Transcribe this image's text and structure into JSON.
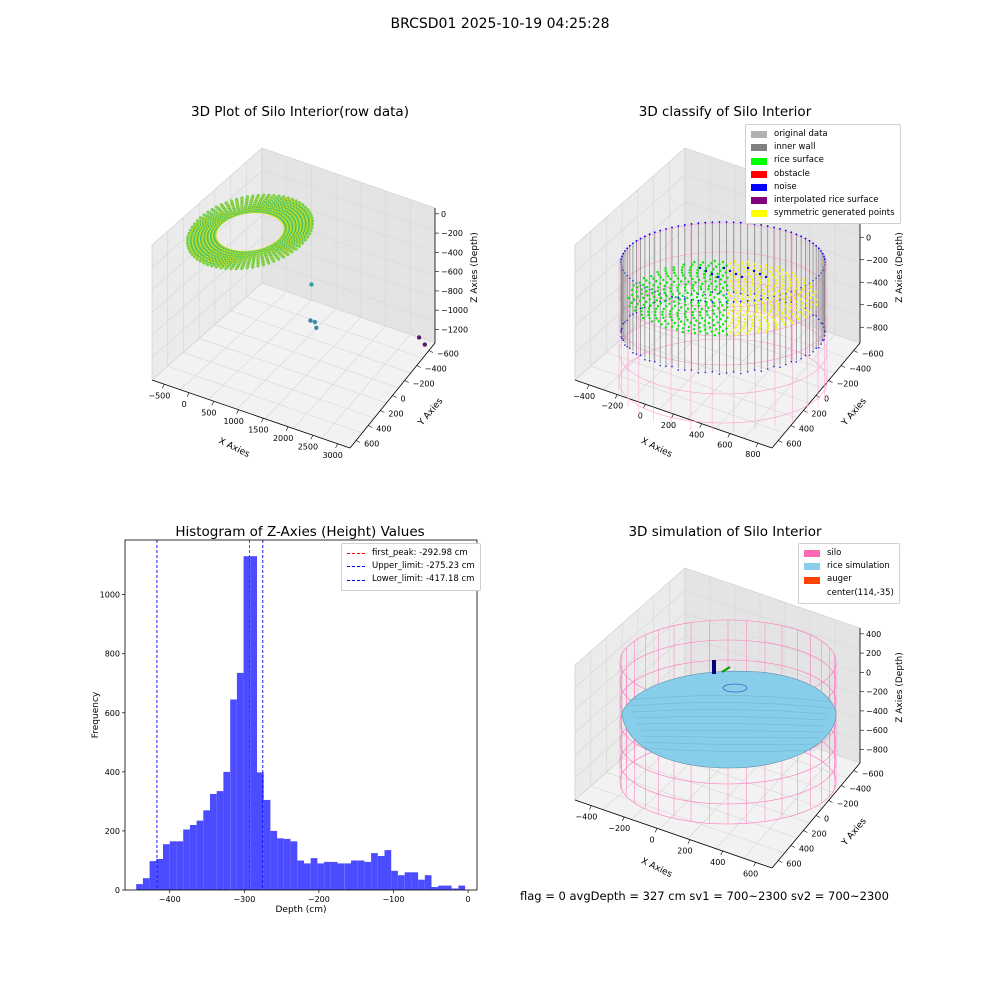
{
  "suptitle": "BRCSD01 2025-10-19 04:25:28",
  "status_line": "flag = 0     avgDepth = 327 cm  sv1 = 700~2300  sv2 = 700~2300",
  "colors": {
    "silo": "#ff69b4",
    "rice_simulation": "#87ceeb",
    "auger": "#ff4500",
    "original_data": "#b0b0b0",
    "inner_wall": "#808080",
    "rice_surface": "#00ff00",
    "obstacle": "#ff0000",
    "noise": "#0000ff",
    "interpolated": "#800080",
    "symmetric": "#ffff00",
    "histogram": "#4b4bff",
    "peak_line": "#ff0000",
    "limit_line": "#0000ff"
  },
  "chart_data": [
    {
      "type": "scatter",
      "title": "3D Plot of Silo Interior(row data)",
      "xlabel": "X Axies",
      "ylabel": "Y Axies",
      "zlabel": "Z Axies (Depth)",
      "x_ticks": [
        "−500",
        "0",
        "500",
        "1000",
        "1500",
        "2000",
        "2500",
        "3000"
      ],
      "y_ticks": [
        "−600",
        "−400",
        "−200",
        "0",
        "200",
        "400",
        "600"
      ],
      "z_ticks": [
        "0",
        "−200",
        "−400",
        "−600",
        "−800",
        "−1000",
        "−1200"
      ],
      "xlim": [
        -650,
        3100
      ],
      "ylim": [
        -650,
        650
      ],
      "zlim": [
        -1300,
        0
      ],
      "outliers": [
        {
          "x": 1000,
          "y": -300,
          "z": -800
        },
        {
          "x": 1150,
          "y": -250,
          "z": -1100
        },
        {
          "x": 1180,
          "y": -250,
          "z": -1150
        },
        {
          "x": 900,
          "y": -350,
          "z": -1200
        },
        {
          "x": 2900,
          "y": -550,
          "z": -1200
        },
        {
          "x": 2950,
          "y": -600,
          "z": -1300
        }
      ]
    },
    {
      "type": "scatter",
      "title": "3D classify of Silo Interior",
      "xlabel": "X Axies",
      "ylabel": "Y Axies",
      "zlabel": "Z Axies (Depth)",
      "x_ticks": [
        "−400",
        "−200",
        "0",
        "200",
        "400",
        "600",
        "800"
      ],
      "y_ticks": [
        "−600",
        "−400",
        "−200",
        "0",
        "200",
        "400",
        "600"
      ],
      "z_ticks": [
        "200",
        "0",
        "−200",
        "−400",
        "−600",
        "−800"
      ],
      "zlim": [
        -900,
        300
      ],
      "legend": [
        "original data",
        "inner wall",
        "rice surface",
        "obstacle",
        "noise",
        "interpolated rice surface",
        "symmetric generated points"
      ]
    },
    {
      "type": "bar",
      "title": "Histogram of Z-Axies (Height) Values",
      "xlabel": "Depth (cm)",
      "ylabel": "Frequency",
      "xlim": [
        -460,
        12
      ],
      "ylim": [
        0,
        1185
      ],
      "x_ticks": [
        -400,
        -300,
        -200,
        -100,
        0
      ],
      "y_ticks": [
        0,
        200,
        400,
        600,
        800,
        1000
      ],
      "x_tick_labels": [
        "−400",
        "−300",
        "−200",
        "−100",
        "0"
      ],
      "bin_start": -445,
      "bin_width": 9,
      "values": [
        20,
        40,
        98,
        105,
        155,
        165,
        165,
        205,
        220,
        235,
        270,
        325,
        335,
        400,
        645,
        735,
        1130,
        1130,
        398,
        305,
        200,
        175,
        173,
        165,
        100,
        90,
        108,
        90,
        95,
        95,
        90,
        90,
        100,
        100,
        95,
        125,
        115,
        135,
        65,
        50,
        60,
        60,
        35,
        50,
        10,
        15,
        15,
        5,
        15
      ],
      "lines": [
        {
          "name": "first_peak: -292.98 cm",
          "x": -292.98,
          "color": "#ff0000"
        },
        {
          "name": "Upper_limit: -275.23 cm",
          "x": -275.23,
          "color": "#0000ff"
        },
        {
          "name": "Lower_limit: -417.18 cm",
          "x": -417.18,
          "color": "#0000ff"
        }
      ]
    },
    {
      "type": "scatter",
      "title": "3D simulation of Silo Interior",
      "xlabel": "X Axies",
      "ylabel": "Y Axies",
      "zlabel": "Z Axies (Depth)",
      "x_ticks": [
        "−400",
        "−200",
        "0",
        "200",
        "400",
        "600"
      ],
      "y_ticks": [
        "−600",
        "−400",
        "−200",
        "0",
        "200",
        "400",
        "600"
      ],
      "z_ticks": [
        "400",
        "200",
        "0",
        "−200",
        "−400",
        "−600",
        "−800"
      ],
      "zlim": [
        -900,
        500
      ],
      "legend": [
        "silo",
        "rice simulation",
        "auger",
        "center(114,-35)"
      ]
    }
  ]
}
